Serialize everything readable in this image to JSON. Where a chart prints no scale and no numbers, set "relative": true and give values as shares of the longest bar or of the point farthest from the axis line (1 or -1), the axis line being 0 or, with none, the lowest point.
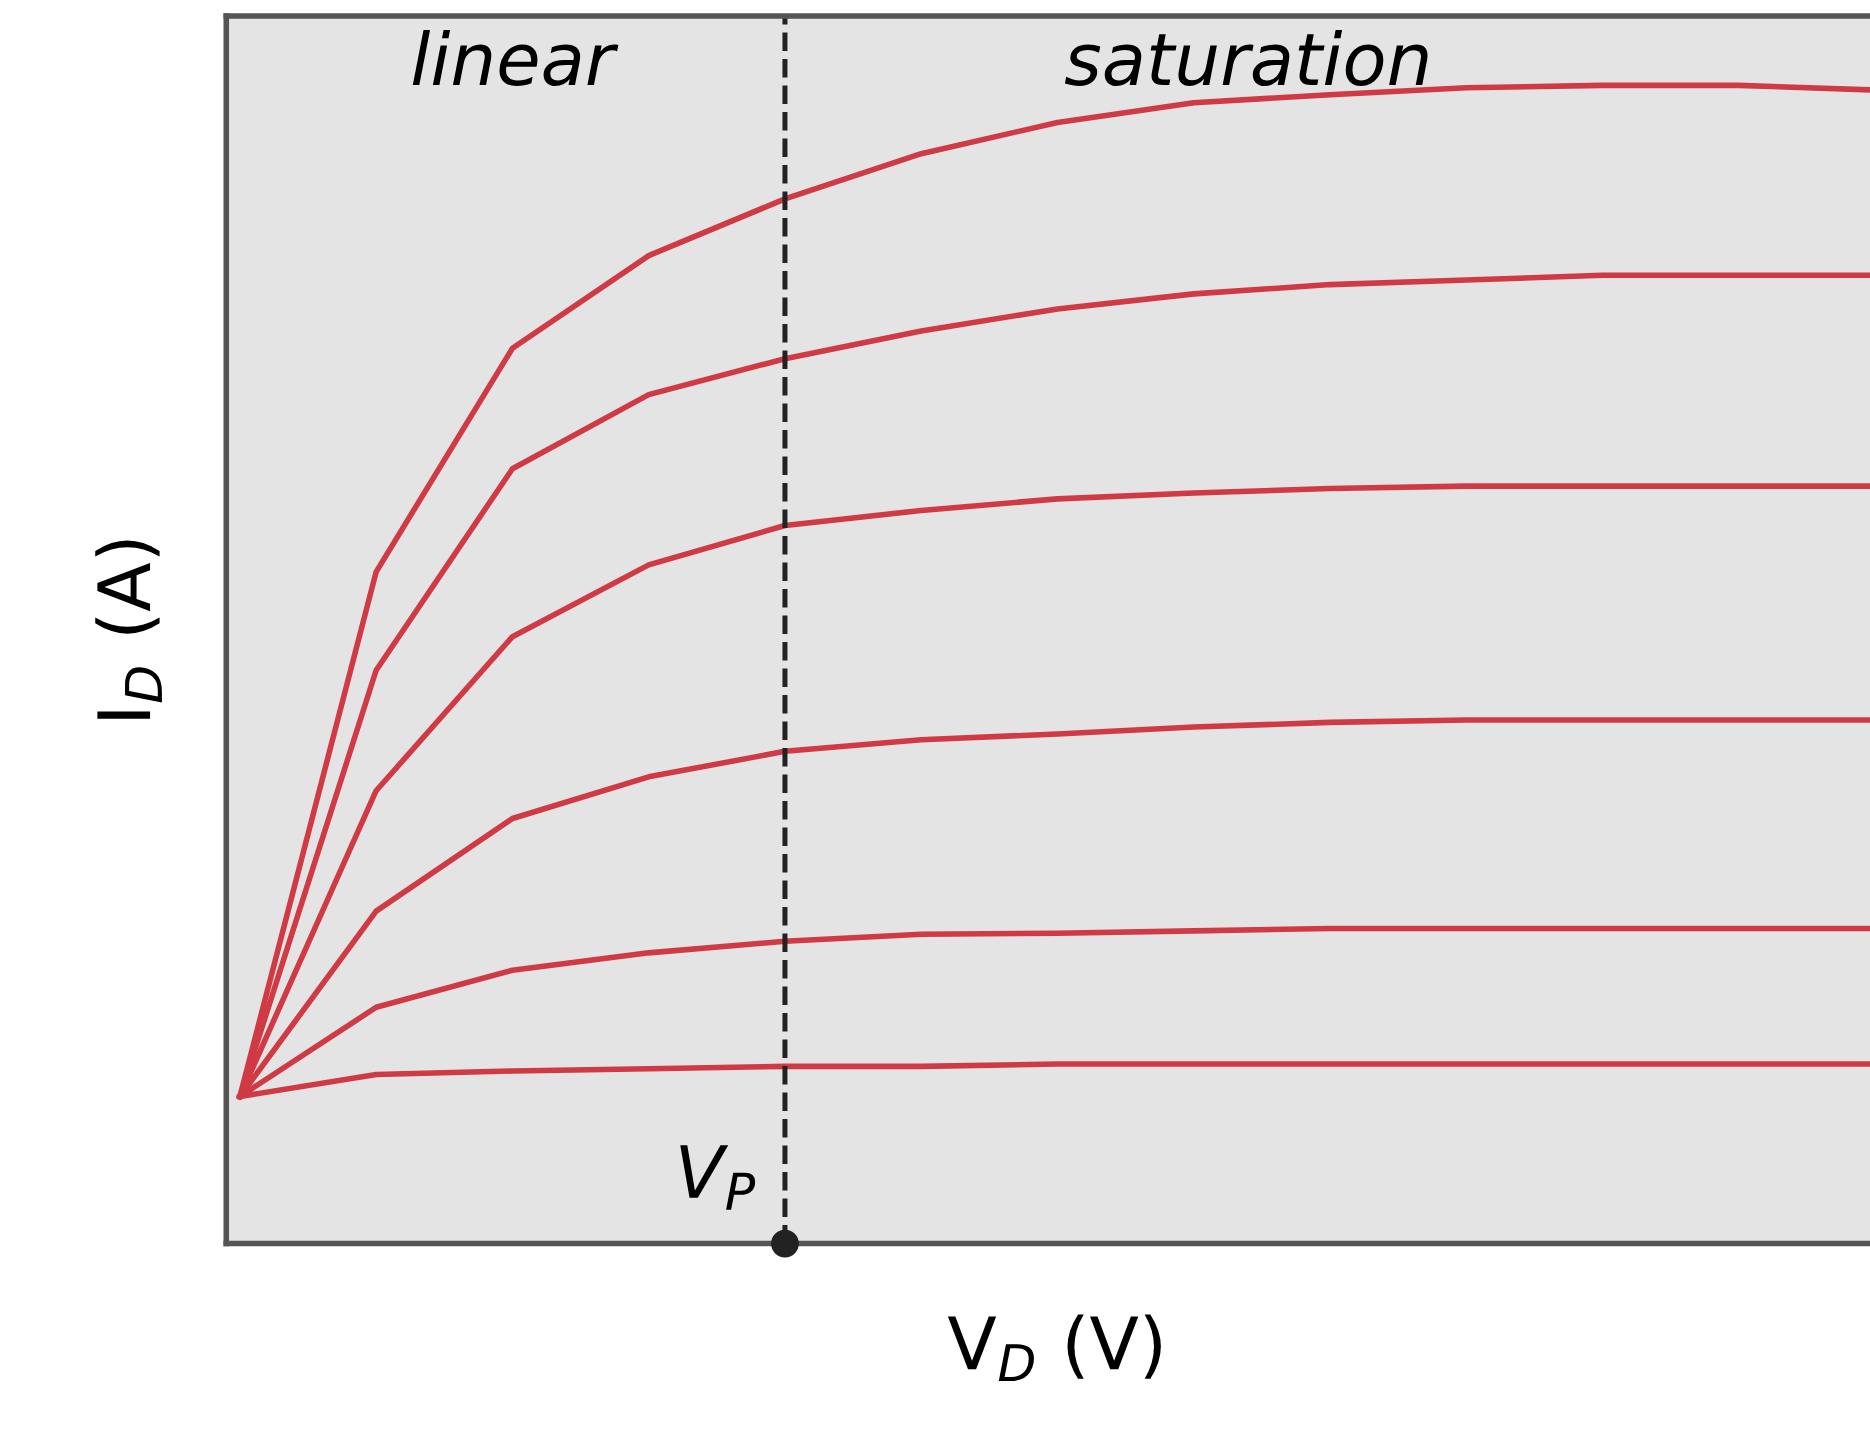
{
  "chart_data": {
    "type": "line",
    "relative": true,
    "xlabel": "V$_{D}$ (V)",
    "ylabel": "I$_{D}$ (A)",
    "categories": [
      null,
      null,
      null,
      null,
      null,
      null,
      null,
      null,
      null,
      null,
      null,
      null,
      null
    ],
    "marker": "none",
    "line_style": "solid",
    "series": [
      {
        "color": "#d03a44",
        "values": [
          0.127,
          0.58,
          0.773,
          0.853,
          0.902,
          0.941,
          0.968,
          0.985,
          0.992,
          0.998,
          1.0,
          1.0,
          0.996
        ]
      },
      {
        "color": "#d03a44",
        "values": [
          0.127,
          0.495,
          0.669,
          0.733,
          0.764,
          0.788,
          0.807,
          0.82,
          0.828,
          0.832,
          0.836,
          0.836,
          0.836
        ]
      },
      {
        "color": "#d03a44",
        "values": [
          0.127,
          0.391,
          0.524,
          0.586,
          0.62,
          0.633,
          0.643,
          0.648,
          0.652,
          0.654,
          0.654,
          0.654,
          0.654
        ]
      },
      {
        "color": "#d03a44",
        "values": [
          0.127,
          0.287,
          0.367,
          0.403,
          0.425,
          0.435,
          0.44,
          0.446,
          0.45,
          0.452,
          0.452,
          0.452,
          0.452
        ]
      },
      {
        "color": "#d03a44",
        "values": [
          0.127,
          0.204,
          0.236,
          0.251,
          0.261,
          0.267,
          0.268,
          0.27,
          0.272,
          0.272,
          0.272,
          0.272,
          0.272
        ]
      },
      {
        "color": "#d03a44",
        "values": [
          0.127,
          0.146,
          0.149,
          0.151,
          0.153,
          0.153,
          0.155,
          0.155,
          0.155,
          0.155,
          0.155,
          0.155,
          0.155
        ]
      }
    ],
    "annotations": [
      "linear",
      "saturation",
      "V$_{P}$"
    ]
  }
}
